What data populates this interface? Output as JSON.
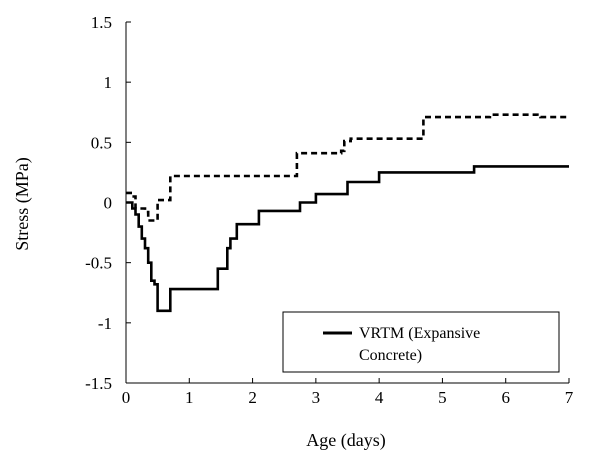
{
  "chart_data": {
    "type": "line",
    "xlabel": "Age (days)",
    "ylabel": "Stress (MPa)",
    "xlim": [
      0,
      7
    ],
    "ylim": [
      -1.5,
      1.5
    ],
    "x_ticks": [
      "0",
      "1",
      "2",
      "3",
      "4",
      "5",
      "6",
      "7"
    ],
    "y_ticks": [
      "1.5",
      "1",
      "0.5",
      "0",
      "-0.5",
      "-1",
      "-1.5"
    ],
    "grid": false,
    "legend_position": "bottom-right",
    "series": [
      {
        "name": "VRTM (Expansive Concrete)",
        "legend_lines": [
          "VRTM (Expansive",
          "Concrete)"
        ],
        "style": "solid",
        "color": "#000000",
        "x": [
          0,
          0.05,
          0.1,
          0.15,
          0.2,
          0.25,
          0.3,
          0.35,
          0.4,
          0.45,
          0.5,
          0.55,
          0.6,
          0.7,
          0.75,
          1.4,
          1.45,
          1.55,
          1.6,
          1.65,
          1.7,
          1.75,
          1.8,
          2.05,
          2.1,
          2.4,
          2.5,
          2.7,
          2.75,
          2.95,
          3.0,
          3.2,
          3.25,
          3.5,
          3.55,
          4.0,
          4.05,
          5.45,
          5.5,
          7.0
        ],
        "y": [
          0,
          0,
          -0.05,
          -0.1,
          -0.2,
          -0.3,
          -0.38,
          -0.5,
          -0.65,
          -0.68,
          -0.9,
          -0.9,
          -0.9,
          -0.72,
          -0.72,
          -0.72,
          -0.55,
          -0.55,
          -0.38,
          -0.3,
          -0.3,
          -0.18,
          -0.18,
          -0.18,
          -0.07,
          -0.07,
          -0.07,
          -0.07,
          0.0,
          0.0,
          0.07,
          0.07,
          0.07,
          0.17,
          0.17,
          0.25,
          0.25,
          0.25,
          0.3,
          0.3
        ]
      },
      {
        "name": "",
        "style": "dashed",
        "color": "#000000",
        "x": [
          0,
          0.05,
          0.1,
          0.15,
          0.3,
          0.35,
          0.45,
          0.5,
          0.55,
          0.7,
          0.75,
          2.65,
          2.7,
          3.4,
          3.45,
          3.55,
          4.65,
          4.7,
          5.7,
          5.75,
          6.5,
          6.55,
          7.0
        ],
        "y": [
          0.08,
          0.08,
          0.05,
          -0.05,
          -0.08,
          -0.15,
          -0.15,
          0.02,
          0.02,
          0.22,
          0.22,
          0.22,
          0.41,
          0.43,
          0.51,
          0.53,
          0.53,
          0.71,
          0.71,
          0.73,
          0.72,
          0.71,
          0.71
        ]
      }
    ]
  }
}
